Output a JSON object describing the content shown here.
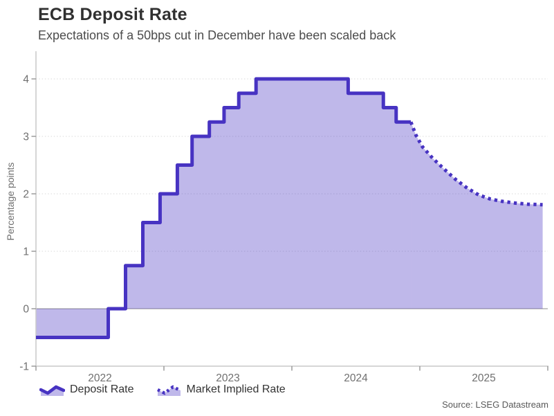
{
  "colors": {
    "line": "#4733c2",
    "fill": "rgba(71,51,194,0.35)",
    "grid": "#d9d9d9",
    "zero_line": "#b3b3b3",
    "axis": "#c9c9c9",
    "tick": "#9a9a9a",
    "tick_label": "#6f6f6f",
    "text": "#333333"
  },
  "chart_data": {
    "type": "area",
    "title": "ECB Deposit Rate",
    "subtitle": "Expectations of a 50bps cut in December have been scaled back",
    "source": "Source: LSEG Datastream",
    "ylabel": "Percentage points",
    "xlabel": "",
    "ylim": [
      -1,
      4.5
    ],
    "yticks": [
      -1,
      0,
      1,
      2,
      3,
      4
    ],
    "year_ticks": [
      2022,
      2023,
      2024,
      2025,
      2026
    ],
    "year_labels": [
      "2022",
      "2023",
      "2024",
      "2025"
    ],
    "baseline": 0,
    "grid": "horizontal-dotted",
    "legend_position": "bottom",
    "series": [
      {
        "name": "Deposit Rate",
        "mode": "step",
        "line": "solid",
        "points": [
          [
            2022.0,
            -0.5
          ],
          [
            2022.565,
            0.0
          ],
          [
            2022.7,
            0.75
          ],
          [
            2022.835,
            1.5
          ],
          [
            2022.97,
            2.0
          ],
          [
            2023.105,
            2.5
          ],
          [
            2023.22,
            3.0
          ],
          [
            2023.355,
            3.25
          ],
          [
            2023.47,
            3.5
          ],
          [
            2023.585,
            3.75
          ],
          [
            2023.72,
            4.0
          ],
          [
            2024.44,
            3.75
          ],
          [
            2024.715,
            3.5
          ],
          [
            2024.815,
            3.25
          ],
          [
            2024.93,
            3.25
          ]
        ]
      },
      {
        "name": "Market Implied Rate",
        "mode": "line",
        "line": "dotted",
        "points": [
          [
            2024.93,
            3.25
          ],
          [
            2024.97,
            3.02
          ],
          [
            2025.02,
            2.82
          ],
          [
            2025.1,
            2.62
          ],
          [
            2025.19,
            2.43
          ],
          [
            2025.28,
            2.25
          ],
          [
            2025.37,
            2.1
          ],
          [
            2025.46,
            1.98
          ],
          [
            2025.55,
            1.91
          ],
          [
            2025.64,
            1.87
          ],
          [
            2025.74,
            1.84
          ],
          [
            2025.84,
            1.82
          ],
          [
            2025.96,
            1.81
          ]
        ]
      }
    ]
  }
}
